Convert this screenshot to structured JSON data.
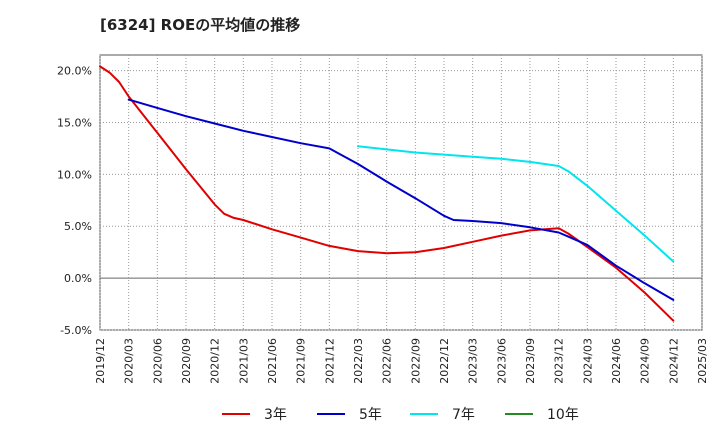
{
  "chart_data": {
    "type": "line",
    "title": "[6324]  ROEの平均値の推移",
    "x_ticks": [
      "2019/12",
      "2020/03",
      "2020/06",
      "2020/09",
      "2020/12",
      "2021/03",
      "2021/06",
      "2021/09",
      "2021/12",
      "2022/03",
      "2022/06",
      "2022/09",
      "2022/12",
      "2023/03",
      "2023/06",
      "2023/09",
      "2023/12",
      "2024/03",
      "2024/06",
      "2024/09",
      "2024/12",
      "2025/03"
    ],
    "y_ticks": [
      20.0,
      15.0,
      10.0,
      5.0,
      0.0,
      -5.0
    ],
    "y_tick_labels": [
      "20.0%",
      "15.0%",
      "10.0%",
      "5.0%",
      "0.0%",
      "-5.0%"
    ],
    "ylim": [
      -5.0,
      21.5
    ],
    "grid": true,
    "legend_position": "bottom",
    "series": [
      {
        "name": "3年",
        "color": "#e00000",
        "x": [
          "2019/12",
          "2020/01",
          "2020/02",
          "2020/03",
          "2020/06",
          "2020/09",
          "2020/12",
          "2021/01",
          "2021/02",
          "2021/03",
          "2021/06",
          "2021/09",
          "2021/12",
          "2022/03",
          "2022/06",
          "2022/09",
          "2022/12",
          "2023/03",
          "2023/06",
          "2023/09",
          "2023/12",
          "2024/01",
          "2024/03",
          "2024/06",
          "2024/09",
          "2024/12"
        ],
        "y": [
          20.4,
          19.8,
          18.9,
          17.5,
          14.0,
          10.5,
          7.1,
          6.2,
          5.8,
          5.6,
          4.7,
          3.9,
          3.1,
          2.6,
          2.4,
          2.5,
          2.9,
          3.5,
          4.1,
          4.6,
          4.8,
          4.3,
          3.0,
          1.0,
          -1.4,
          -4.1
        ]
      },
      {
        "name": "5年",
        "color": "#0000cc",
        "x": [
          "2020/03",
          "2020/06",
          "2020/09",
          "2020/12",
          "2021/03",
          "2021/06",
          "2021/09",
          "2021/12",
          "2022/01",
          "2022/03",
          "2022/06",
          "2022/09",
          "2022/12",
          "2023/01",
          "2023/03",
          "2023/06",
          "2023/09",
          "2023/12",
          "2024/01",
          "2024/03",
          "2024/06",
          "2024/09",
          "2024/12"
        ],
        "y": [
          17.2,
          16.4,
          15.6,
          14.9,
          14.2,
          13.6,
          13.0,
          12.5,
          12.0,
          11.0,
          9.3,
          7.7,
          6.0,
          5.6,
          5.5,
          5.3,
          4.9,
          4.4,
          4.0,
          3.2,
          1.2,
          -0.5,
          -2.1
        ]
      },
      {
        "name": "7年",
        "color": "#00e5ee",
        "x": [
          "2022/03",
          "2022/06",
          "2022/09",
          "2022/12",
          "2023/03",
          "2023/06",
          "2023/09",
          "2023/12",
          "2024/01",
          "2024/03",
          "2024/06",
          "2024/09",
          "2024/12"
        ],
        "y": [
          12.7,
          12.4,
          12.1,
          11.9,
          11.7,
          11.5,
          11.2,
          10.8,
          10.3,
          8.9,
          6.5,
          4.1,
          1.6
        ]
      },
      {
        "name": "10年",
        "color": "#228b22",
        "x": [],
        "y": []
      }
    ]
  }
}
